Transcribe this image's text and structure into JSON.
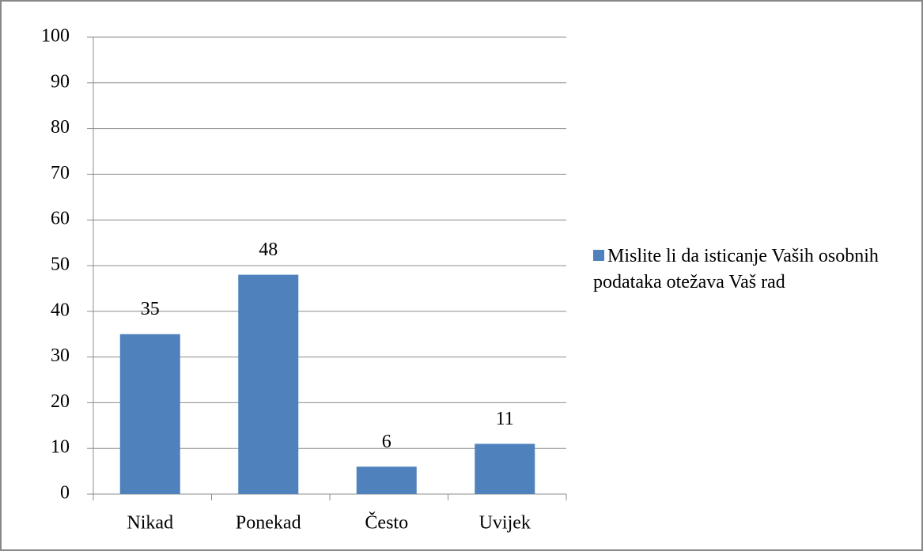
{
  "chart_data": {
    "type": "bar",
    "categories": [
      "Nikad",
      "Ponekad",
      "Često",
      "Uvijek"
    ],
    "series": [
      {
        "name": "Mislite li da  isticanje Vaših osobnih podataka otežava Vaš rad",
        "color": "#4f81bd",
        "values": [
          35,
          48,
          6,
          11
        ]
      }
    ],
    "ylim": [
      0,
      100
    ],
    "yticks": [
      0,
      10,
      20,
      30,
      40,
      50,
      60,
      70,
      80,
      90,
      100
    ],
    "grid": true,
    "legend": "right"
  }
}
